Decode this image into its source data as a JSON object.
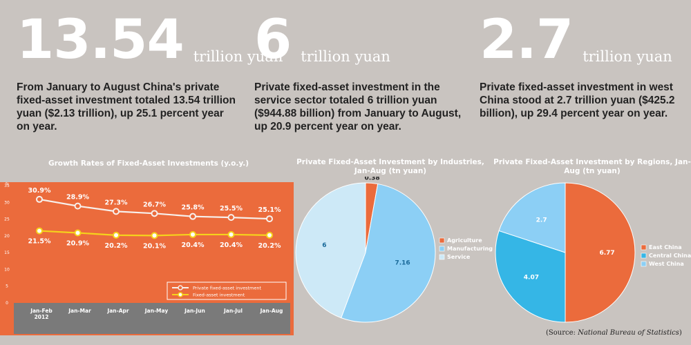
{
  "stats": [
    {
      "value": "13.54",
      "unit": "trillion yuan",
      "text": "From January to August China's private fixed-asset investment totaled 13.54 trillion yuan ($2.13 trillion), up 25.1 percent year on year."
    },
    {
      "value": "6",
      "unit": "trillion yuan",
      "text": "Private fixed-asset investment in the service sector totaled 6 trillion yuan ($944.88 billion) from January to August, up 20.9 percent year on year."
    },
    {
      "value": "2.7",
      "unit": "trillion yuan",
      "text": "Private fixed-asset investment in west China stood at 2.7 trillion yuan ($425.2 billion), up 29.4 percent year on year."
    }
  ],
  "source": {
    "prefix": "(Source: ",
    "name": "National Bureau of Statistics",
    "suffix": ")"
  },
  "colors": {
    "orange": "#eb6b3c",
    "blue": "#35b6e6",
    "lightblue": "#8ccff5",
    "paleblue": "#cde9f7",
    "yellow": "#f5d31c",
    "white": "#ffffff",
    "gray": "#7a7a7a"
  },
  "chart_data": [
    {
      "type": "line",
      "title": "Growth Rates of Fixed-Asset Investments (y.o.y.)",
      "ylabel": "%",
      "ylim": [
        0,
        35
      ],
      "yticks": [
        0,
        5,
        10,
        15,
        20,
        25,
        30,
        35
      ],
      "categories": [
        "Jan-Feb 2012",
        "Jan-Mar",
        "Jan-Apr",
        "Jan-May",
        "Jan-Jun",
        "Jan-Jul",
        "Jan-Aug"
      ],
      "series": [
        {
          "name": "Private fixed-asset investment",
          "values": [
            30.9,
            28.9,
            27.3,
            26.7,
            25.8,
            25.5,
            25.1
          ],
          "labels": [
            "30.9%",
            "28.9%",
            "27.3%",
            "26.7%",
            "25.8%",
            "25.5%",
            "25.1%"
          ]
        },
        {
          "name": "Fixed-asset investment",
          "values": [
            21.5,
            20.9,
            20.2,
            20.1,
            20.4,
            20.4,
            20.2
          ],
          "labels": [
            "21.5%",
            "20.9%",
            "20.2%",
            "20.1%",
            "20.4%",
            "20.4%",
            "20.2%"
          ]
        }
      ],
      "legend": "bottom-right",
      "grid": false
    },
    {
      "type": "pie",
      "title": "Private Fixed-Asset Investment by Industries, Jan-Aug (tn yuan)",
      "labels": [
        "Agriculture",
        "Manufacturing",
        "Service"
      ],
      "values": [
        0.38,
        7.16,
        6
      ],
      "value_labels": [
        "0.38",
        "7.16",
        "6"
      ],
      "legend": "right"
    },
    {
      "type": "pie",
      "title": "Private Fixed-Asset Investment by Regions, Jan-Aug (tn yuan)",
      "labels": [
        "East China",
        "Central China",
        "West China"
      ],
      "values": [
        6.77,
        4.07,
        2.7
      ],
      "value_labels": [
        "6.77",
        "4.07",
        "2.7"
      ],
      "legend": "right"
    }
  ]
}
